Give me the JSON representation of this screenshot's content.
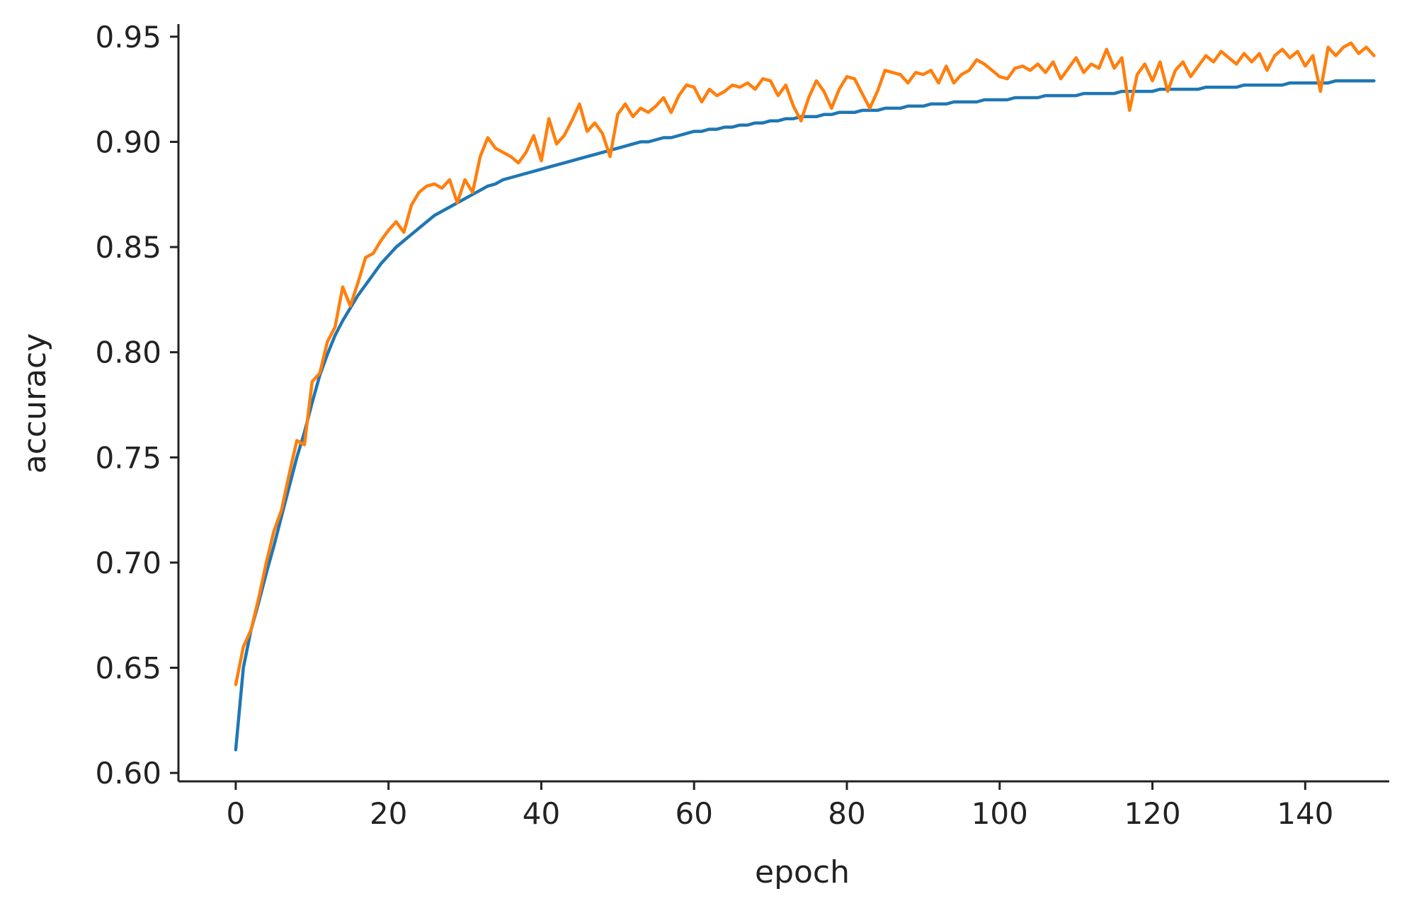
{
  "chart_data": {
    "type": "line",
    "title": "",
    "xlabel": "epoch",
    "ylabel": "accuracy",
    "xlim": [
      -7.5,
      151
    ],
    "ylim": [
      0.596,
      0.956
    ],
    "x_ticks": [
      0,
      20,
      40,
      60,
      80,
      100,
      120,
      140
    ],
    "y_ticks": [
      0.6,
      0.65,
      0.7,
      0.75,
      0.8,
      0.85,
      0.9,
      0.95
    ],
    "spines": [
      "left",
      "bottom"
    ],
    "grid": false,
    "series_x_start": 0,
    "series_x_step": 1,
    "series": [
      {
        "color": "#1f77b4",
        "values": [
          0.611,
          0.65,
          0.668,
          0.681,
          0.695,
          0.708,
          0.722,
          0.736,
          0.75,
          0.762,
          0.776,
          0.789,
          0.799,
          0.808,
          0.815,
          0.821,
          0.827,
          0.832,
          0.837,
          0.842,
          0.846,
          0.85,
          0.853,
          0.856,
          0.859,
          0.862,
          0.865,
          0.867,
          0.869,
          0.871,
          0.873,
          0.875,
          0.877,
          0.879,
          0.88,
          0.882,
          0.883,
          0.884,
          0.885,
          0.886,
          0.887,
          0.888,
          0.889,
          0.89,
          0.891,
          0.892,
          0.893,
          0.894,
          0.895,
          0.896,
          0.897,
          0.898,
          0.899,
          0.9,
          0.9,
          0.901,
          0.902,
          0.902,
          0.903,
          0.904,
          0.905,
          0.905,
          0.906,
          0.906,
          0.907,
          0.907,
          0.908,
          0.908,
          0.909,
          0.909,
          0.91,
          0.91,
          0.911,
          0.911,
          0.912,
          0.912,
          0.912,
          0.913,
          0.913,
          0.914,
          0.914,
          0.914,
          0.915,
          0.915,
          0.915,
          0.916,
          0.916,
          0.916,
          0.917,
          0.917,
          0.917,
          0.918,
          0.918,
          0.918,
          0.919,
          0.919,
          0.919,
          0.919,
          0.92,
          0.92,
          0.92,
          0.92,
          0.921,
          0.921,
          0.921,
          0.921,
          0.922,
          0.922,
          0.922,
          0.922,
          0.922,
          0.923,
          0.923,
          0.923,
          0.923,
          0.923,
          0.924,
          0.924,
          0.924,
          0.924,
          0.924,
          0.925,
          0.925,
          0.925,
          0.925,
          0.925,
          0.925,
          0.926,
          0.926,
          0.926,
          0.926,
          0.926,
          0.927,
          0.927,
          0.927,
          0.927,
          0.927,
          0.927,
          0.928,
          0.928,
          0.928,
          0.928,
          0.928,
          0.928,
          0.929,
          0.929,
          0.929,
          0.929,
          0.929,
          0.929
        ]
      },
      {
        "color": "#ff7f0e",
        "values": [
          0.642,
          0.66,
          0.668,
          0.683,
          0.7,
          0.715,
          0.725,
          0.742,
          0.758,
          0.756,
          0.786,
          0.79,
          0.805,
          0.812,
          0.831,
          0.822,
          0.833,
          0.845,
          0.847,
          0.853,
          0.858,
          0.862,
          0.857,
          0.87,
          0.876,
          0.879,
          0.88,
          0.878,
          0.882,
          0.871,
          0.882,
          0.876,
          0.893,
          0.902,
          0.897,
          0.895,
          0.893,
          0.89,
          0.895,
          0.903,
          0.891,
          0.911,
          0.899,
          0.903,
          0.91,
          0.918,
          0.905,
          0.909,
          0.904,
          0.893,
          0.913,
          0.918,
          0.912,
          0.916,
          0.914,
          0.917,
          0.921,
          0.914,
          0.922,
          0.927,
          0.926,
          0.919,
          0.925,
          0.922,
          0.924,
          0.927,
          0.926,
          0.928,
          0.925,
          0.93,
          0.929,
          0.922,
          0.927,
          0.917,
          0.91,
          0.921,
          0.929,
          0.924,
          0.916,
          0.925,
          0.931,
          0.93,
          0.923,
          0.916,
          0.924,
          0.934,
          0.933,
          0.932,
          0.928,
          0.933,
          0.932,
          0.934,
          0.928,
          0.936,
          0.928,
          0.932,
          0.934,
          0.939,
          0.937,
          0.934,
          0.931,
          0.93,
          0.935,
          0.936,
          0.934,
          0.937,
          0.933,
          0.938,
          0.93,
          0.935,
          0.94,
          0.933,
          0.937,
          0.935,
          0.944,
          0.935,
          0.94,
          0.915,
          0.932,
          0.937,
          0.929,
          0.938,
          0.924,
          0.934,
          0.938,
          0.931,
          0.936,
          0.941,
          0.938,
          0.943,
          0.94,
          0.937,
          0.942,
          0.938,
          0.942,
          0.934,
          0.941,
          0.944,
          0.94,
          0.943,
          0.936,
          0.941,
          0.924,
          0.945,
          0.941,
          0.945,
          0.947,
          0.942,
          0.945,
          0.941
        ]
      }
    ]
  }
}
